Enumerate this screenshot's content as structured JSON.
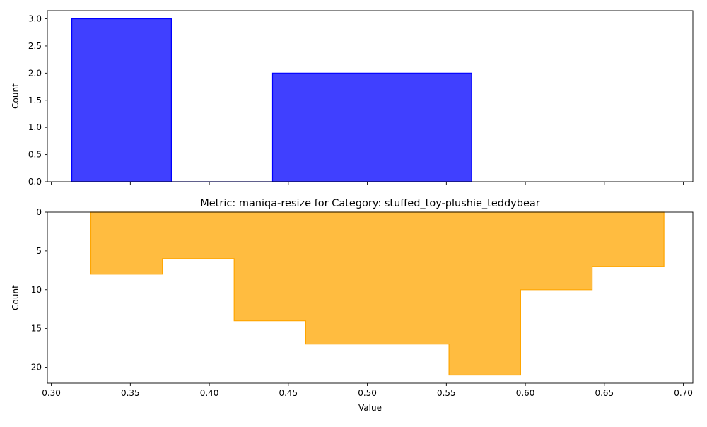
{
  "chart_data": [
    {
      "type": "bar",
      "subtype": "histogram",
      "title": "",
      "xlabel": "",
      "ylabel": "Count",
      "color": "#0000ff",
      "xlim": [
        0.2975,
        0.706
      ],
      "ylim": [
        0,
        3.15
      ],
      "yticks": [
        0.0,
        0.5,
        1.0,
        1.5,
        2.0,
        2.5,
        3.0
      ],
      "ytick_labels": [
        "0.0",
        "0.5",
        "1.0",
        "1.5",
        "2.0",
        "2.5",
        "3.0"
      ],
      "xticks": [
        0.3,
        0.35,
        0.4,
        0.45,
        0.5,
        0.55,
        0.6,
        0.65,
        0.7
      ],
      "show_xtick_labels": false,
      "bin_edges": [
        0.313,
        0.376,
        0.44,
        0.503,
        0.566
      ],
      "values": [
        3,
        0,
        2,
        2
      ],
      "grid": false
    },
    {
      "type": "bar",
      "subtype": "histogram",
      "title": "Metric: maniqa-resize for Category: stuffed_toy-plushie_teddybear",
      "xlabel": "Value",
      "ylabel": "Count",
      "color": "#ffa500",
      "y_inverted": true,
      "xlim": [
        0.2975,
        0.706
      ],
      "ylim": [
        0,
        22.05
      ],
      "yticks": [
        0,
        5,
        10,
        15,
        20
      ],
      "ytick_labels": [
        "0",
        "5",
        "10",
        "15",
        "20"
      ],
      "xticks": [
        0.3,
        0.35,
        0.4,
        0.45,
        0.5,
        0.55,
        0.6,
        0.65,
        0.7
      ],
      "xtick_labels": [
        "0.30",
        "0.35",
        "0.40",
        "0.45",
        "0.50",
        "0.55",
        "0.60",
        "0.65",
        "0.70"
      ],
      "bin_edges": [
        0.325,
        0.3703,
        0.4157,
        0.461,
        0.5063,
        0.5517,
        0.597,
        0.6423,
        0.6877
      ],
      "values": [
        8,
        6,
        14,
        17,
        17,
        21,
        10,
        7
      ],
      "grid": false
    }
  ]
}
